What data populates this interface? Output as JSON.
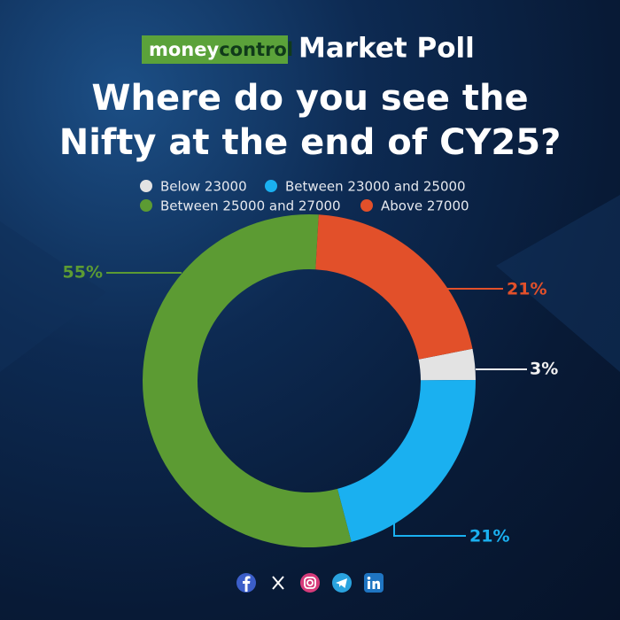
{
  "header": {
    "brand_money": "money",
    "brand_control": "control",
    "heading": "Market Poll"
  },
  "chart_data": {
    "type": "donut",
    "title": "Where do you see the Nifty at the end of CY25?",
    "categories": [
      "Below 23000",
      "Between 23000 and 25000",
      "Between 25000 and 27000",
      "Above 27000"
    ],
    "values": [
      3,
      21,
      55,
      21
    ],
    "value_labels": [
      "3%",
      "21%",
      "55%",
      "21%"
    ],
    "colors": [
      "#e3e3e3",
      "#1ab0f0",
      "#5c9b33",
      "#e2502a"
    ],
    "legend": "top"
  }
}
